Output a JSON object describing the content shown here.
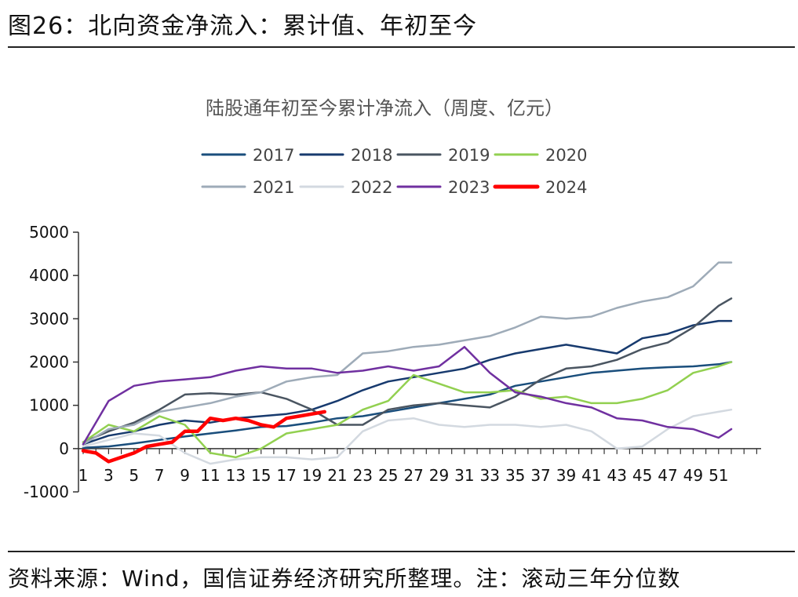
{
  "figure_title": "图26：北向资金净流入：累计值、年初至今",
  "source_note": "资料来源：Wind，国信证券经济研究所整理。注：滚动三年分位数",
  "colors": {
    "2017": "#1a4e7c",
    "2018": "#173a6e",
    "2019": "#4a5561",
    "2020": "#92d050",
    "2021": "#9eabb8",
    "2022": "#d3d9e0",
    "2023": "#7030a0",
    "2024": "#ff0000"
  },
  "chart_data": {
    "type": "line",
    "title": "陆股通年初至今累计净流入（周度、亿元）",
    "xlabel": "",
    "ylabel": "",
    "ylim": [
      -1000,
      5000
    ],
    "yticks": [
      -1000,
      0,
      1000,
      2000,
      3000,
      4000,
      5000
    ],
    "xlim": [
      1,
      52
    ],
    "xticks": [
      1,
      3,
      5,
      7,
      9,
      11,
      13,
      15,
      17,
      19,
      21,
      23,
      25,
      27,
      29,
      31,
      33,
      35,
      37,
      39,
      41,
      43,
      45,
      47,
      49,
      51
    ],
    "grid": false,
    "legend": "top",
    "series": [
      {
        "name": "2017",
        "x": [
          1,
          3,
          5,
          7,
          9,
          11,
          13,
          15,
          17,
          19,
          21,
          23,
          25,
          27,
          29,
          31,
          33,
          35,
          37,
          39,
          41,
          43,
          45,
          47,
          49,
          51,
          52
        ],
        "values": [
          20,
          50,
          120,
          200,
          280,
          350,
          420,
          500,
          520,
          600,
          700,
          750,
          850,
          950,
          1050,
          1150,
          1250,
          1450,
          1550,
          1650,
          1750,
          1800,
          1850,
          1880,
          1900,
          1950,
          2000
        ]
      },
      {
        "name": "2018",
        "x": [
          1,
          3,
          5,
          7,
          9,
          11,
          13,
          15,
          17,
          19,
          21,
          23,
          25,
          27,
          29,
          31,
          33,
          35,
          37,
          39,
          41,
          43,
          45,
          47,
          49,
          51,
          52
        ],
        "values": [
          100,
          300,
          400,
          550,
          650,
          600,
          700,
          750,
          800,
          900,
          1100,
          1350,
          1550,
          1650,
          1750,
          1850,
          2050,
          2200,
          2300,
          2400,
          2300,
          2200,
          2550,
          2650,
          2850,
          2950,
          2950
        ]
      },
      {
        "name": "2019",
        "x": [
          1,
          3,
          5,
          7,
          9,
          11,
          13,
          15,
          17,
          19,
          21,
          23,
          25,
          27,
          29,
          31,
          33,
          35,
          37,
          39,
          41,
          43,
          45,
          47,
          49,
          51,
          52
        ],
        "values": [
          150,
          400,
          600,
          900,
          1250,
          1280,
          1250,
          1300,
          1150,
          900,
          550,
          550,
          900,
          1000,
          1050,
          1000,
          950,
          1200,
          1600,
          1850,
          1900,
          2050,
          2300,
          2450,
          2800,
          3300,
          3470
        ]
      },
      {
        "name": "2020",
        "x": [
          1,
          3,
          5,
          7,
          9,
          11,
          13,
          15,
          17,
          19,
          21,
          23,
          25,
          27,
          29,
          31,
          33,
          35,
          37,
          39,
          41,
          43,
          45,
          47,
          49,
          51,
          52
        ],
        "values": [
          150,
          550,
          400,
          750,
          550,
          -100,
          -200,
          0,
          350,
          450,
          550,
          900,
          1100,
          1700,
          1500,
          1300,
          1300,
          1350,
          1150,
          1200,
          1050,
          1050,
          1150,
          1350,
          1750,
          1900,
          2000
        ]
      },
      {
        "name": "2021",
        "x": [
          1,
          3,
          5,
          7,
          9,
          11,
          13,
          15,
          17,
          19,
          21,
          23,
          25,
          27,
          29,
          31,
          33,
          35,
          37,
          39,
          41,
          43,
          45,
          47,
          49,
          51,
          52
        ],
        "values": [
          100,
          450,
          550,
          850,
          950,
          1050,
          1200,
          1300,
          1550,
          1650,
          1700,
          2200,
          2250,
          2350,
          2400,
          2500,
          2600,
          2800,
          3050,
          3000,
          3050,
          3250,
          3400,
          3500,
          3750,
          4300,
          4300
        ]
      },
      {
        "name": "2022",
        "x": [
          1,
          3,
          5,
          7,
          9,
          11,
          13,
          15,
          17,
          19,
          21,
          23,
          25,
          27,
          29,
          31,
          33,
          35,
          37,
          39,
          41,
          43,
          45,
          47,
          49,
          51,
          52
        ],
        "values": [
          50,
          200,
          350,
          300,
          -100,
          -350,
          -250,
          -200,
          -200,
          -250,
          -200,
          400,
          650,
          700,
          550,
          500,
          550,
          550,
          500,
          550,
          400,
          0,
          50,
          450,
          750,
          850,
          900
        ]
      },
      {
        "name": "2023",
        "x": [
          1,
          3,
          5,
          7,
          9,
          11,
          13,
          15,
          17,
          19,
          21,
          23,
          25,
          27,
          29,
          31,
          33,
          35,
          37,
          39,
          41,
          43,
          45,
          47,
          49,
          51,
          52
        ],
        "values": [
          100,
          1100,
          1450,
          1550,
          1600,
          1650,
          1800,
          1900,
          1850,
          1850,
          1750,
          1800,
          1900,
          1800,
          1900,
          2350,
          1750,
          1300,
          1200,
          1050,
          950,
          700,
          650,
          500,
          450,
          250,
          450
        ]
      },
      {
        "name": "2024",
        "x": [
          1,
          2,
          3,
          4,
          5,
          6,
          7,
          8,
          9,
          10,
          11,
          12,
          13,
          14,
          15,
          16,
          17,
          18,
          19,
          20
        ],
        "values": [
          -50,
          -100,
          -300,
          -200,
          -100,
          50,
          100,
          150,
          400,
          400,
          700,
          650,
          700,
          650,
          550,
          500,
          700,
          750,
          800,
          850
        ]
      }
    ]
  }
}
